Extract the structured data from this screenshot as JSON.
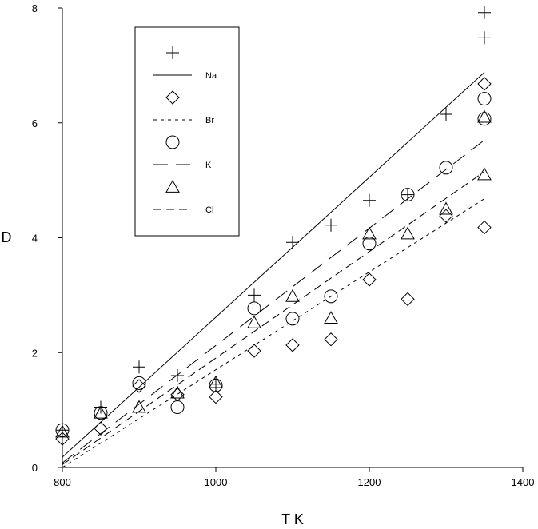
{
  "chart_data": {
    "type": "scatter",
    "title": "",
    "xlabel": "T K",
    "ylabel": "D",
    "xlim": [
      800,
      1400
    ],
    "ylim": [
      0,
      8
    ],
    "xticks": [
      800,
      1000,
      1200,
      1400
    ],
    "yticks": [
      0,
      2,
      4,
      6,
      8
    ],
    "grid": false,
    "legend_position": "top-left",
    "colors": {
      "axis": "#000000",
      "marks": "#000000",
      "background": "#ffffff"
    },
    "series": [
      {
        "name": "Na",
        "marker": "plus",
        "line_style": "solid",
        "points": [
          [
            800,
            0.65
          ],
          [
            850,
            1.05
          ],
          [
            900,
            1.75
          ],
          [
            950,
            1.6
          ],
          [
            1000,
            1.45
          ],
          [
            1050,
            3.0
          ],
          [
            1100,
            3.92
          ],
          [
            1150,
            4.22
          ],
          [
            1200,
            4.65
          ],
          [
            1250,
            4.75
          ],
          [
            1300,
            6.15
          ],
          [
            1350,
            7.48
          ],
          [
            1350,
            7.92
          ]
        ],
        "fit": [
          [
            800,
            0.18
          ],
          [
            1350,
            6.88
          ]
        ]
      },
      {
        "name": "Br",
        "marker": "diamond",
        "line_style": "dotted",
        "points": [
          [
            800,
            0.5
          ],
          [
            850,
            0.68
          ],
          [
            900,
            1.42
          ],
          [
            950,
            1.27
          ],
          [
            1000,
            1.23
          ],
          [
            1050,
            2.03
          ],
          [
            1100,
            2.13
          ],
          [
            1150,
            2.23
          ],
          [
            1200,
            3.27
          ],
          [
            1250,
            2.93
          ],
          [
            1300,
            4.38
          ],
          [
            1350,
            4.18
          ],
          [
            1350,
            6.68
          ]
        ],
        "fit": [
          [
            800,
            0.0
          ],
          [
            1350,
            4.68
          ]
        ]
      },
      {
        "name": "K",
        "marker": "circle",
        "line_style": "long-dash",
        "points": [
          [
            800,
            0.65
          ],
          [
            850,
            0.95
          ],
          [
            900,
            1.47
          ],
          [
            950,
            1.05
          ],
          [
            1000,
            1.43
          ],
          [
            1050,
            2.77
          ],
          [
            1100,
            2.59
          ],
          [
            1150,
            2.98
          ],
          [
            1200,
            3.9
          ],
          [
            1250,
            4.75
          ],
          [
            1300,
            5.22
          ],
          [
            1350,
            6.07
          ],
          [
            1350,
            6.42
          ]
        ],
        "fit": [
          [
            800,
            0.08
          ],
          [
            1350,
            5.7
          ]
        ]
      },
      {
        "name": "Cl",
        "marker": "triangle",
        "line_style": "dash",
        "points": [
          [
            800,
            0.62
          ],
          [
            850,
            0.95
          ],
          [
            900,
            1.05
          ],
          [
            950,
            1.3
          ],
          [
            1000,
            1.48
          ],
          [
            1050,
            2.52
          ],
          [
            1100,
            2.98
          ],
          [
            1150,
            2.6
          ],
          [
            1200,
            4.07
          ],
          [
            1250,
            4.07
          ],
          [
            1300,
            4.5
          ],
          [
            1350,
            5.1
          ],
          [
            1350,
            6.1
          ]
        ],
        "fit": [
          [
            800,
            0.05
          ],
          [
            1350,
            5.15
          ]
        ]
      }
    ]
  }
}
